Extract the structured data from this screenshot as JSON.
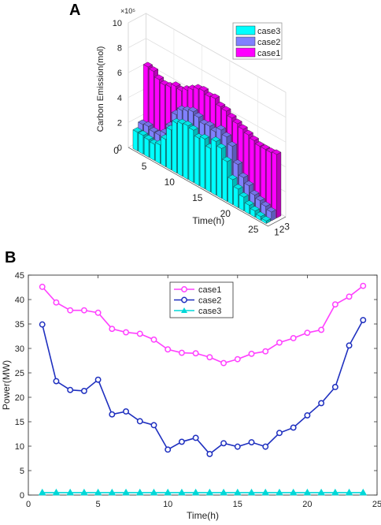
{
  "panels": {
    "a": "A",
    "b": "B"
  },
  "chart_data": [
    {
      "type": "bar3d",
      "title": "",
      "xlabel": "Time(h)",
      "ylabel": "",
      "zlabel": "Carbon Emission(mol)",
      "z_exponent": "×10⁵",
      "zlim": [
        0,
        10
      ],
      "zticks": [
        0,
        2,
        4,
        6,
        8,
        10
      ],
      "xticks": [
        0,
        5,
        10,
        15,
        20,
        25
      ],
      "yticks": [
        1,
        2,
        3
      ],
      "legend_position": "top-right",
      "colors": {
        "case1": "#ff00ff",
        "case2": "#8080ff",
        "case3": "#00ffff"
      },
      "x": [
        1,
        2,
        3,
        4,
        5,
        6,
        7,
        8,
        9,
        10,
        11,
        12,
        13,
        14,
        15,
        16,
        17,
        18,
        19,
        20,
        21,
        22,
        23,
        24
      ],
      "series": [
        {
          "name": "case3",
          "values": [
            1.5,
            1.5,
            1.4,
            1.3,
            1.5,
            2.2,
            3.2,
            4.0,
            4.2,
            4.3,
            4.2,
            3.8,
            4.0,
            3.5,
            4.3,
            4.0,
            3.2,
            2.0,
            1.5,
            1.1,
            0.7,
            0.5,
            0.3,
            0.2
          ]
        },
        {
          "name": "case2",
          "values": [
            1.9,
            2.0,
            1.8,
            1.8,
            2.2,
            3.0,
            4.2,
            4.8,
            5.0,
            5.2,
            5.0,
            4.7,
            4.8,
            4.6,
            5.0,
            4.7,
            4.2,
            3.0,
            2.2,
            1.8,
            1.3,
            1.1,
            0.9,
            0.7
          ]
        },
        {
          "name": "case1",
          "values": [
            6.3,
            6.2,
            5.8,
            5.6,
            5.7,
            6.0,
            5.9,
            6.2,
            6.5,
            6.8,
            6.9,
            6.7,
            6.8,
            6.4,
            6.3,
            6.0,
            5.8,
            5.6,
            5.4,
            5.2,
            5.0,
            5.0,
            5.0,
            5.1
          ]
        }
      ]
    },
    {
      "type": "line",
      "title": "",
      "xlabel": "Time(h)",
      "ylabel": "Power(MW)",
      "xlim": [
        0,
        25
      ],
      "ylim": [
        0,
        45
      ],
      "xticks": [
        0,
        5,
        10,
        15,
        20,
        25
      ],
      "yticks": [
        0,
        5,
        10,
        15,
        20,
        25,
        30,
        35,
        40,
        45
      ],
      "legend_position": "top-center",
      "x": [
        1,
        2,
        3,
        4,
        5,
        6,
        7,
        8,
        9,
        10,
        11,
        12,
        13,
        14,
        15,
        16,
        17,
        18,
        19,
        20,
        21,
        22,
        23,
        24
      ],
      "series": [
        {
          "name": "case1",
          "color": "#ff40ff",
          "marker": "circle",
          "values": [
            42.6,
            39.4,
            37.8,
            37.8,
            37.3,
            34.0,
            33.3,
            33.0,
            31.8,
            29.8,
            29.1,
            29.0,
            28.2,
            27.0,
            27.8,
            28.9,
            29.4,
            31.2,
            32.1,
            33.2,
            33.8,
            39.0,
            40.6,
            42.8
          ]
        },
        {
          "name": "case2",
          "color": "#1e2fbf",
          "marker": "circle",
          "values": [
            34.9,
            23.3,
            21.5,
            21.3,
            23.6,
            16.5,
            17.1,
            15.1,
            14.3,
            9.3,
            10.9,
            11.7,
            8.4,
            10.6,
            9.9,
            10.8,
            9.9,
            12.7,
            13.8,
            16.3,
            18.8,
            22.1,
            30.6,
            35.8
          ]
        },
        {
          "name": "case3",
          "color": "#00d8d8",
          "marker": "triangle",
          "values": [
            0.5,
            0.5,
            0.5,
            0.5,
            0.5,
            0.5,
            0.5,
            0.5,
            0.5,
            0.5,
            0.5,
            0.5,
            0.5,
            0.5,
            0.5,
            0.5,
            0.5,
            0.5,
            0.5,
            0.5,
            0.5,
            0.5,
            0.5,
            0.5
          ]
        }
      ]
    }
  ]
}
